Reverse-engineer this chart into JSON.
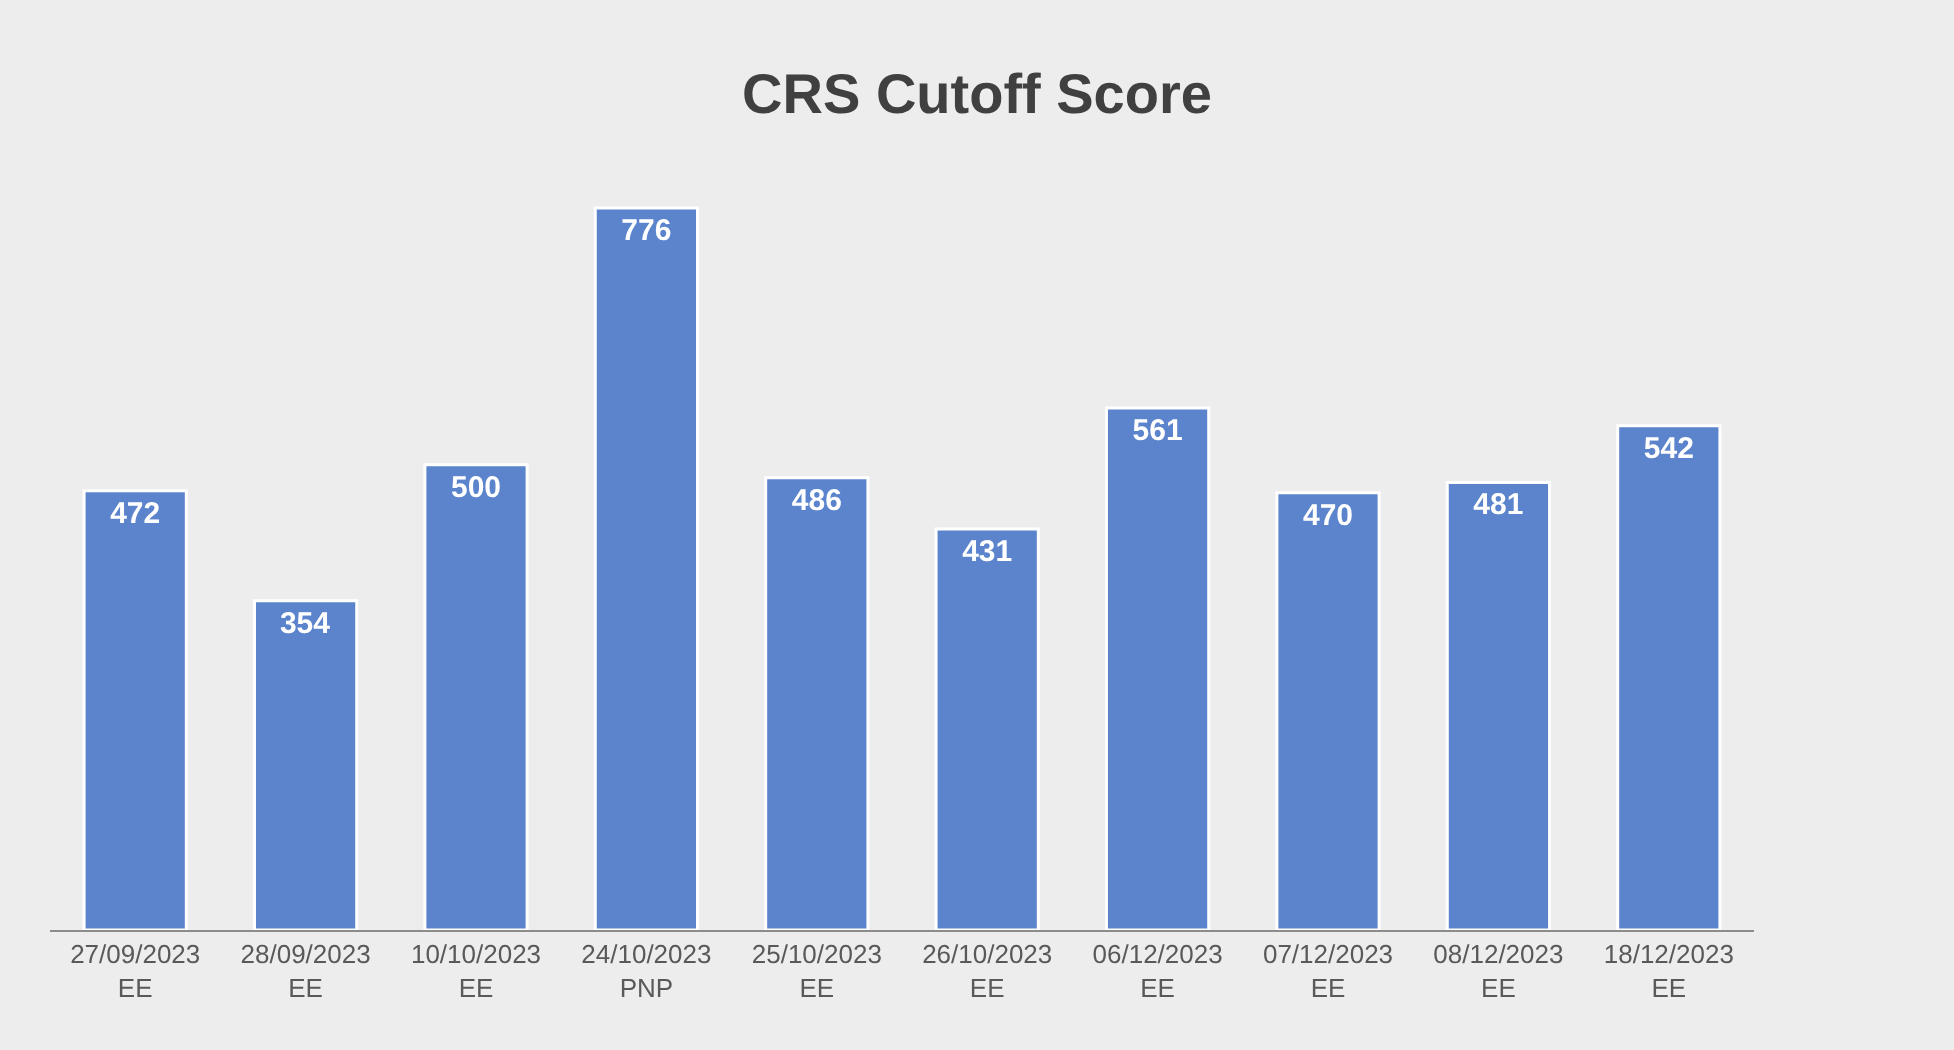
{
  "chart_data": {
    "type": "bar",
    "title": "CRS Cutoff Score",
    "categories": [
      "27/09/2023\nEE",
      "28/09/2023\nEE",
      "10/10/2023\nEE",
      "24/10/2023\nPNP",
      "25/10/2023\nEE",
      "26/10/2023\nEE",
      "06/12/2023\nEE",
      "07/12/2023\nEE",
      "08/12/2023\nEE",
      "18/12/2023\nEE"
    ],
    "values": [
      472,
      354,
      500,
      776,
      486,
      431,
      561,
      470,
      481,
      542
    ],
    "color": "#5b84cc",
    "data_labels": true
  }
}
